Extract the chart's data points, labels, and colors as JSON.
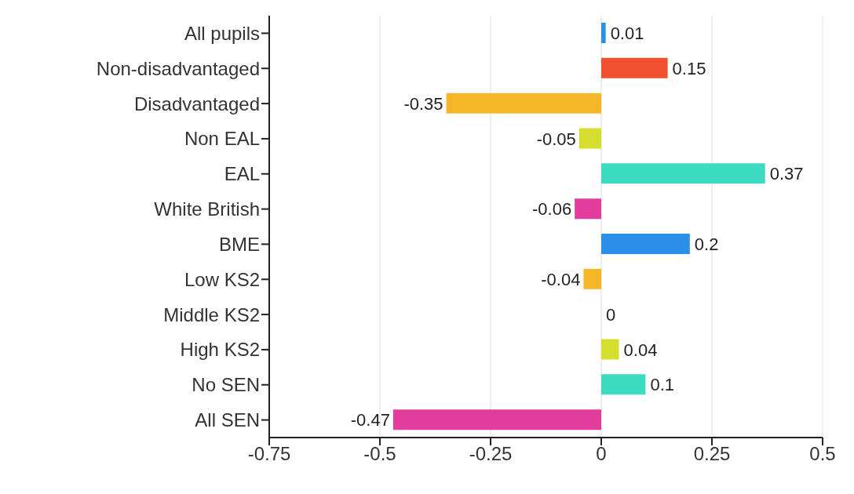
{
  "chart_data": {
    "type": "bar",
    "orientation": "horizontal",
    "categories": [
      "All pupils",
      "Non-disadvantaged",
      "Disadvantaged",
      "Non EAL",
      "EAL",
      "White British",
      "BME",
      "Low KS2",
      "Middle KS2",
      "High KS2",
      "No SEN",
      "All SEN"
    ],
    "values": [
      0.01,
      0.15,
      -0.35,
      -0.05,
      0.37,
      -0.06,
      0.2,
      -0.04,
      0,
      0.04,
      0.1,
      -0.47
    ],
    "colors": [
      "#2b8fe8",
      "#f0502d",
      "#f5b728",
      "#d5de2e",
      "#3ddcc2",
      "#e23c9c",
      "#2b8fe8",
      "#f5b728",
      "#f0502d",
      "#d5de2e",
      "#3ddcc2",
      "#e23c9c"
    ],
    "xlim": [
      -0.75,
      0.5
    ],
    "xticks": [
      -0.75,
      -0.5,
      -0.25,
      0,
      0.25,
      0.5
    ],
    "grid": "x",
    "data_labels": true,
    "legend": false
  }
}
